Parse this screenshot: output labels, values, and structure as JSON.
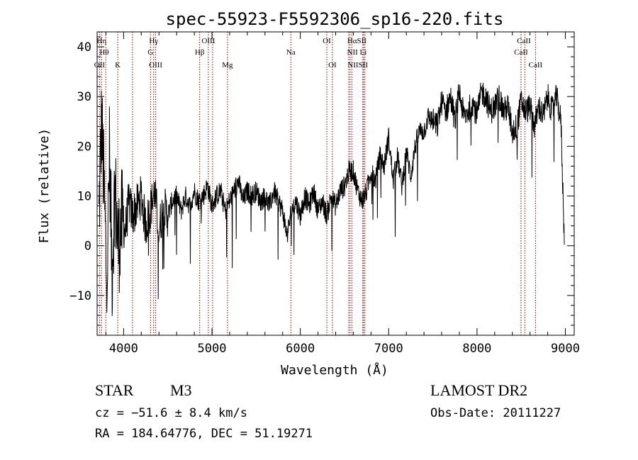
{
  "chart_data": {
    "type": "line",
    "title": "spec-55923-F5592306_sp16-220.fits",
    "xlabel": "Wavelength (Å)",
    "ylabel": "Flux (relative)",
    "xlim": [
      3700,
      9100
    ],
    "ylim": [
      -18,
      43
    ],
    "xticks": [
      4000,
      5000,
      6000,
      7000,
      8000,
      9000
    ],
    "yticks": [
      -10,
      0,
      10,
      20,
      30,
      40
    ],
    "grid": false,
    "legend": "none",
    "line_color": "#000000",
    "marker_color": "#8b0000",
    "series": [
      {
        "x": [
          3720,
          3750,
          3780,
          3810,
          3840,
          3870,
          3900,
          3940,
          3980,
          4020,
          4060,
          4100,
          4150,
          4200,
          4250,
          4300,
          4350,
          4400,
          4450,
          4500,
          4550,
          4600,
          4650,
          4700,
          4750,
          4800,
          4850,
          4900,
          4950,
          5000,
          5050,
          5100,
          5150,
          5200,
          5250,
          5300,
          5350,
          5400,
          5450,
          5500,
          5550,
          5600,
          5650,
          5700,
          5750,
          5800,
          5850,
          5900,
          5950,
          6000,
          6050,
          6100,
          6150,
          6200,
          6250,
          6300,
          6350,
          6400,
          6450,
          6500,
          6550,
          6600,
          6650,
          6700,
          6750,
          6800,
          6850,
          6900,
          6950,
          7000,
          7050,
          7100,
          7150,
          7200,
          7250,
          7300,
          7350,
          7400,
          7450,
          7500,
          7550,
          7600,
          7650,
          7700,
          7750,
          7800,
          7850,
          7900,
          7950,
          8000,
          8050,
          8100,
          8150,
          8200,
          8250,
          8300,
          8350,
          8400,
          8450,
          8500,
          8550,
          8600,
          8650,
          8700,
          8750,
          8800,
          8850,
          8900,
          8950,
          8990
        ],
        "y": [
          5,
          25,
          10,
          -8,
          18,
          -5,
          12,
          0,
          5,
          3,
          9,
          6,
          8,
          10,
          4,
          7,
          11,
          3,
          8,
          6,
          9,
          10,
          7,
          10,
          8,
          11,
          9,
          10,
          12,
          8,
          10,
          11,
          7,
          9,
          11,
          13,
          9,
          11,
          10,
          11,
          9,
          10,
          8,
          11,
          9,
          7,
          2,
          7,
          9,
          6,
          10,
          8,
          11,
          7,
          9,
          6,
          10,
          8,
          11,
          12,
          15,
          15,
          11,
          9,
          11,
          15,
          13,
          18,
          16,
          22,
          13,
          18,
          12,
          19,
          14,
          20,
          23,
          23,
          26,
          25,
          24,
          29,
          27,
          30,
          25,
          31,
          26,
          27,
          29,
          26,
          31,
          30,
          27,
          28,
          30,
          27,
          28,
          23,
          24,
          29,
          27,
          28,
          24,
          28,
          26,
          30,
          27,
          30,
          25,
          0
        ],
        "color": "#000000"
      }
    ],
    "lines": [
      {
        "wave": 3727,
        "top": "OII"
      },
      {
        "wave": 3750,
        "top": "Hη"
      },
      {
        "wave": 3798,
        "top": "Hθ"
      },
      {
        "wave": 3934,
        "top": "K"
      },
      {
        "wave": 4101,
        "top": "Hδ"
      },
      {
        "wave": 4305,
        "top": "G"
      },
      {
        "wave": 4340,
        "top": "Hγ"
      },
      {
        "wave": 4363,
        "top": "OIII"
      },
      {
        "wave": 4861,
        "top": "Hβ"
      },
      {
        "wave": 4959,
        "top": "OIII"
      },
      {
        "wave": 5007,
        "top": "OIII"
      },
      {
        "wave": 5175,
        "top": "Mg"
      },
      {
        "wave": 5893,
        "top": "Na"
      },
      {
        "wave": 6300,
        "top": "OI"
      },
      {
        "wave": 6363,
        "top": "OI"
      },
      {
        "wave": 6548,
        "top": "NII"
      },
      {
        "wave": 6563,
        "top": "Hα"
      },
      {
        "wave": 6583,
        "top": "NII"
      },
      {
        "wave": 6707,
        "top": "Li"
      },
      {
        "wave": 6717,
        "top": "SII"
      },
      {
        "wave": 6731,
        "top": "SII"
      },
      {
        "wave": 8498,
        "top": "CaII"
      },
      {
        "wave": 8542,
        "top": "CaII"
      },
      {
        "wave": 8662,
        "top": "CaII"
      }
    ],
    "labels": [
      {
        "text": "Hη",
        "wave": 3750,
        "row": 0
      },
      {
        "text": "Hθ",
        "wave": 3780,
        "row": 1
      },
      {
        "text": "OII",
        "wave": 3727,
        "row": 2
      },
      {
        "text": "K",
        "wave": 3934,
        "row": 2
      },
      {
        "text": "Hγ",
        "wave": 4340,
        "row": 0
      },
      {
        "text": "G",
        "wave": 4305,
        "row": 1
      },
      {
        "text": "OIII",
        "wave": 4363,
        "row": 2
      },
      {
        "text": "OIII",
        "wave": 4959,
        "row": 0
      },
      {
        "text": "Hβ",
        "wave": 4861,
        "row": 1
      },
      {
        "text": "Mg",
        "wave": 5175,
        "row": 2
      },
      {
        "text": "Na",
        "wave": 5893,
        "row": 1
      },
      {
        "text": "OI",
        "wave": 6300,
        "row": 0
      },
      {
        "text": "OI",
        "wave": 6363,
        "row": 2
      },
      {
        "text": "HαSII",
        "wave": 6640,
        "row": 0
      },
      {
        "text": "NII Li",
        "wave": 6640,
        "row": 1
      },
      {
        "text": "NIISII",
        "wave": 6650,
        "row": 2
      },
      {
        "text": "CaII",
        "wave": 8530,
        "row": 0
      },
      {
        "text": "CaII",
        "wave": 8498,
        "row": 1
      },
      {
        "text": "CaII",
        "wave": 8662,
        "row": 2
      }
    ]
  },
  "info": {
    "class": "STAR",
    "subclass": "M3",
    "survey": "LAMOST DR2",
    "cz": "cz = −51.6 ± 8.4 km/s",
    "obs_date": "Obs-Date: 20111227",
    "radec": "RA = 184.64776, DEC =  51.19271"
  }
}
